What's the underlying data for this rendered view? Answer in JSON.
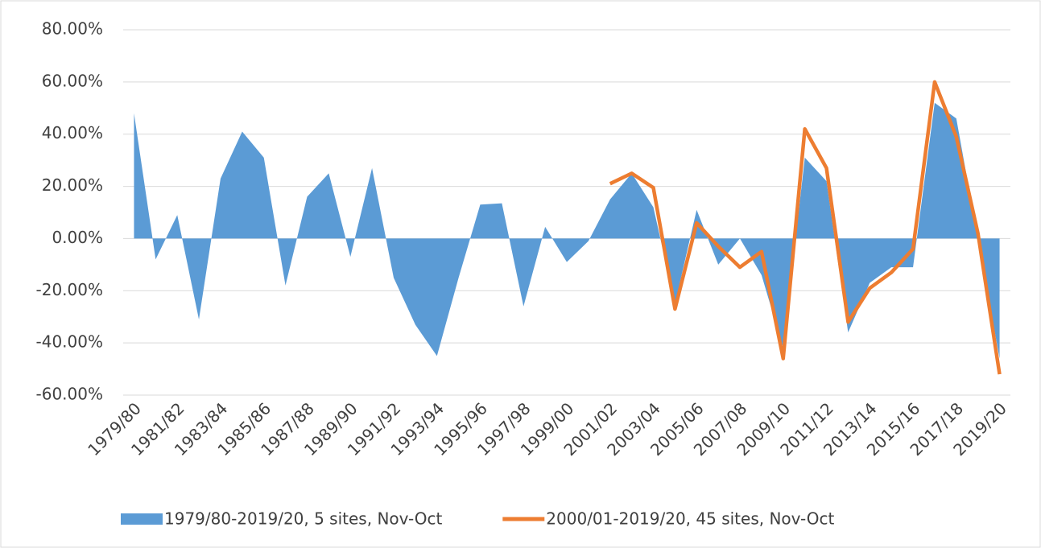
{
  "chart_data": {
    "type": "area_line",
    "categories": [
      "1979/80",
      null,
      "1981/82",
      null,
      "1983/84",
      null,
      "1985/86",
      null,
      "1987/88",
      null,
      "1989/90",
      null,
      "1991/92",
      null,
      "1993/94",
      null,
      "1995/96",
      null,
      "1997/98",
      null,
      "1999/00",
      null,
      "2001/02",
      null,
      "2003/04",
      null,
      "2005/06",
      null,
      "2007/08",
      null,
      "2009/10",
      null,
      "2011/12",
      null,
      "2013/14",
      null,
      "2015/16",
      null,
      "2017/18",
      null,
      "2019/20"
    ],
    "series": [
      {
        "name": "1979/80-2019/20, 5 sites, Nov-Oct",
        "kind": "area",
        "color": "#5b9bd5",
        "values": [
          48,
          -8,
          9,
          -31,
          23,
          41,
          31,
          -18,
          16,
          25,
          -7,
          27,
          -15,
          -33,
          -45,
          -15,
          13,
          13.5,
          -26,
          4.5,
          -9,
          -1,
          15,
          25,
          12,
          -25,
          11,
          -10,
          0,
          -14,
          -42,
          31,
          22,
          -36,
          -17,
          -11,
          -11,
          52,
          46,
          0,
          -46
        ]
      },
      {
        "name": "2000/01-2019/20, 45 sites, Nov-Oct",
        "kind": "line",
        "color": "#ed7d31",
        "values": [
          null,
          null,
          null,
          null,
          null,
          null,
          null,
          null,
          null,
          null,
          null,
          null,
          null,
          null,
          null,
          null,
          null,
          null,
          null,
          null,
          null,
          null,
          21,
          25,
          19.5,
          -27,
          6,
          -3,
          -11,
          -5,
          -46,
          42,
          27,
          -32,
          -19,
          -13,
          -4,
          60,
          39,
          2,
          -52
        ]
      }
    ],
    "ylim": [
      -60,
      80
    ],
    "yticks": [
      {
        "value": -60,
        "label": "-60.00%"
      },
      {
        "value": -40,
        "label": "-40.00%"
      },
      {
        "value": -20,
        "label": "-20.00%"
      },
      {
        "value": 0,
        "label": "0.00%"
      },
      {
        "value": 20,
        "label": "20.00%"
      },
      {
        "value": 40,
        "label": "40.00%"
      },
      {
        "value": 60,
        "label": "60.00%"
      },
      {
        "value": 80,
        "label": "80.00%"
      }
    ],
    "grid": true,
    "legend": "bottom"
  }
}
